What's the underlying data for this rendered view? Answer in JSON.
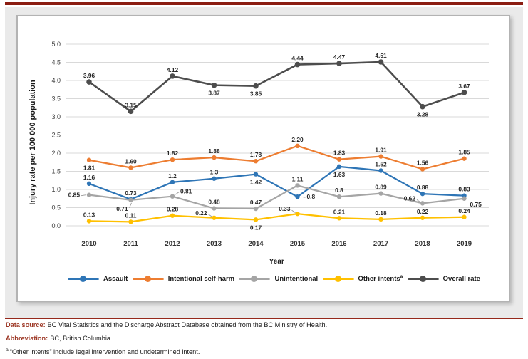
{
  "figure": {
    "top_rule_color": "#8B1D12",
    "bottom_rule_color": "#96291C",
    "footer_accent_color": "#9E3A28",
    "band_background_color": "#EAEAEA",
    "panel_border_color": "#B3B3B3",
    "gridline_color": "#D9D9D9",
    "leader_color": "#999999",
    "data_label_color": "#262626",
    "tick_label_color": "#404040"
  },
  "chart_data": {
    "type": "line",
    "title": "",
    "xlabel": "Year",
    "ylabel": "Injury rate per 100 000 population",
    "ylim": [
      0,
      5
    ],
    "ytick_step": 0.5,
    "grid": true,
    "legend_position": "bottom",
    "x": [
      "2010",
      "2011",
      "2012",
      "2013",
      "2014",
      "2015",
      "2016",
      "2017",
      "2018",
      "2019"
    ],
    "series": [
      {
        "name": "Assault",
        "color": "#2E75B6",
        "line_width": 2.25,
        "marker_r": 3.2,
        "values": [
          1.16,
          0.73,
          1.2,
          1.3,
          1.42,
          0.8,
          1.63,
          1.52,
          0.88,
          0.83
        ],
        "labels": [
          "1.16",
          "0.73",
          "1.2",
          "1.3",
          "1.42",
          "0.8",
          "1.63",
          "1.52",
          "0.88",
          "0.83"
        ],
        "label_pos": [
          "a",
          "a",
          "a",
          "a",
          "b",
          "r",
          "b",
          "a",
          "a",
          "a"
        ]
      },
      {
        "name": "Intentional self-harm",
        "color": "#ED7D31",
        "line_width": 2.25,
        "marker_r": 3.2,
        "values": [
          1.81,
          1.6,
          1.82,
          1.88,
          1.78,
          2.2,
          1.83,
          1.91,
          1.56,
          1.85
        ],
        "labels": [
          "1.81",
          "1.60",
          "1.82",
          "1.88",
          "1.78",
          "2.20",
          "1.83",
          "1.91",
          "1.56",
          "1.85"
        ],
        "label_pos": [
          "b",
          "a",
          "a",
          "a",
          "a",
          "a",
          "a",
          "a",
          "a",
          "a"
        ]
      },
      {
        "name": "Unintentional",
        "color": "#A5A5A5",
        "line_width": 2.25,
        "marker_r": 3.2,
        "values": [
          0.85,
          0.71,
          0.81,
          0.48,
          0.47,
          1.11,
          0.8,
          0.89,
          0.62,
          0.75
        ],
        "labels": [
          "0.85",
          "0.71",
          "0.81",
          "0.48",
          "0.47",
          "1.11",
          "0.8",
          "0.89",
          "0.62",
          "0.75"
        ],
        "label_pos": [
          "l",
          "bl",
          "ar",
          "a",
          "a",
          "a",
          "a",
          "a",
          "al",
          "br"
        ]
      },
      {
        "name": "Other intents",
        "sup": "a",
        "color": "#FFC000",
        "line_width": 2.25,
        "marker_r": 3.2,
        "values": [
          0.13,
          0.11,
          0.28,
          0.22,
          0.17,
          0.33,
          0.21,
          0.18,
          0.22,
          0.24
        ],
        "labels": [
          "0.13",
          "0.11",
          "0.28",
          "0.22",
          "0.17",
          "0.33",
          "0.21",
          "0.18",
          "0.22",
          "0.24"
        ],
        "label_pos": [
          "a",
          "a",
          "a",
          "al",
          "b",
          "al",
          "a",
          "a",
          "a",
          "a"
        ]
      },
      {
        "name": "Overall rate",
        "color": "#4D4D4D",
        "line_width": 2.6,
        "marker_r": 3.8,
        "values": [
          3.96,
          3.15,
          4.12,
          3.87,
          3.85,
          4.44,
          4.47,
          4.51,
          3.28,
          3.67
        ],
        "labels": [
          "3.96",
          "3.15",
          "4.12",
          "3.87",
          "3.85",
          "4.44",
          "4.47",
          "4.51",
          "3.28",
          "3.67"
        ],
        "label_pos": [
          "a",
          "a",
          "a",
          "b",
          "b",
          "a",
          "a",
          "a",
          "b",
          "a"
        ]
      }
    ]
  },
  "footer": {
    "data_source": {
      "label": "Data source:",
      "text": "BC Vital Statistics and the Discharge Abstract Database obtained from the BC Ministry of Health."
    },
    "abbreviation": {
      "label": "Abbreviation:",
      "text": "BC, British Columbia."
    },
    "footnote": {
      "marker": "a",
      "text": "“Other intents” include legal intervention and undetermined intent."
    }
  }
}
